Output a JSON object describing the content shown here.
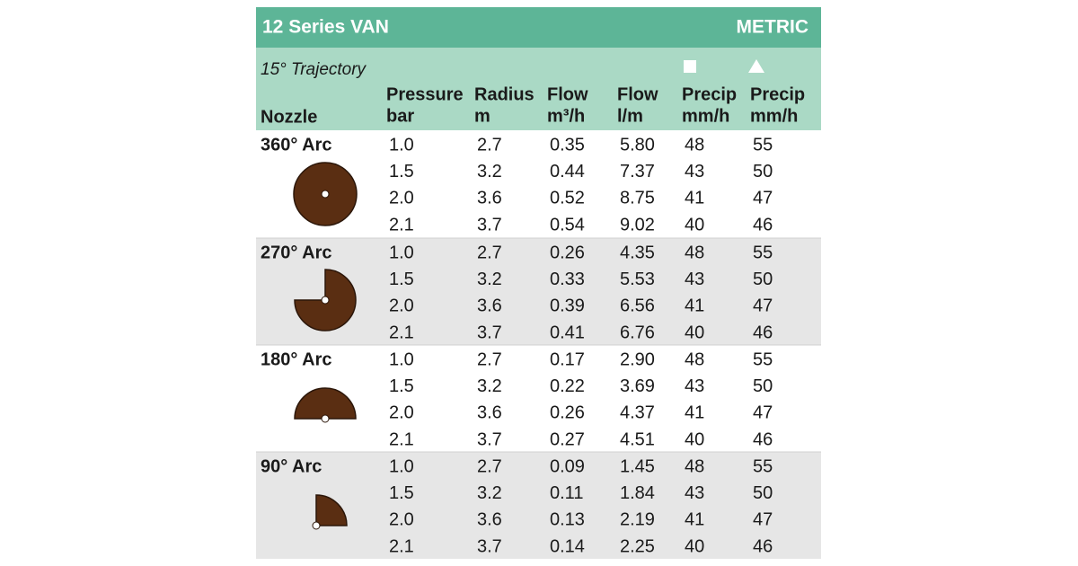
{
  "header": {
    "title": "12 Series VAN",
    "unit_system": "METRIC",
    "trajectory": "15° Trajectory"
  },
  "columns": {
    "nozzle": "Nozzle",
    "values": [
      [
        "Pressure",
        "bar"
      ],
      [
        "Radius",
        "m"
      ],
      [
        "Flow",
        "m³/h"
      ],
      [
        "Flow",
        "l/m"
      ],
      [
        "Precip",
        "mm/h"
      ],
      [
        "Precip",
        "mm/h"
      ]
    ]
  },
  "groups": [
    {
      "nozzle": "360° Arc",
      "rows": [
        [
          "1.0",
          "2.7",
          "0.35",
          "5.80",
          "48",
          "55"
        ],
        [
          "1.5",
          "3.2",
          "0.44",
          "7.37",
          "43",
          "50"
        ],
        [
          "2.0",
          "3.6",
          "0.52",
          "8.75",
          "41",
          "47"
        ],
        [
          "2.1",
          "3.7",
          "0.54",
          "9.02",
          "40",
          "46"
        ]
      ]
    },
    {
      "nozzle": "270° Arc",
      "rows": [
        [
          "1.0",
          "2.7",
          "0.26",
          "4.35",
          "48",
          "55"
        ],
        [
          "1.5",
          "3.2",
          "0.33",
          "5.53",
          "43",
          "50"
        ],
        [
          "2.0",
          "3.6",
          "0.39",
          "6.56",
          "41",
          "47"
        ],
        [
          "2.1",
          "3.7",
          "0.41",
          "6.76",
          "40",
          "46"
        ]
      ]
    },
    {
      "nozzle": "180° Arc",
      "rows": [
        [
          "1.0",
          "2.7",
          "0.17",
          "2.90",
          "48",
          "55"
        ],
        [
          "1.5",
          "3.2",
          "0.22",
          "3.69",
          "43",
          "50"
        ],
        [
          "2.0",
          "3.6",
          "0.26",
          "4.37",
          "41",
          "47"
        ],
        [
          "2.1",
          "3.7",
          "0.27",
          "4.51",
          "40",
          "46"
        ]
      ]
    },
    {
      "nozzle": "90° Arc",
      "rows": [
        [
          "1.0",
          "2.7",
          "0.09",
          "1.45",
          "48",
          "55"
        ],
        [
          "1.5",
          "3.2",
          "0.11",
          "1.84",
          "43",
          "50"
        ],
        [
          "2.0",
          "3.6",
          "0.13",
          "2.19",
          "41",
          "47"
        ],
        [
          "2.1",
          "3.7",
          "0.14",
          "2.25",
          "40",
          "46"
        ]
      ]
    }
  ]
}
